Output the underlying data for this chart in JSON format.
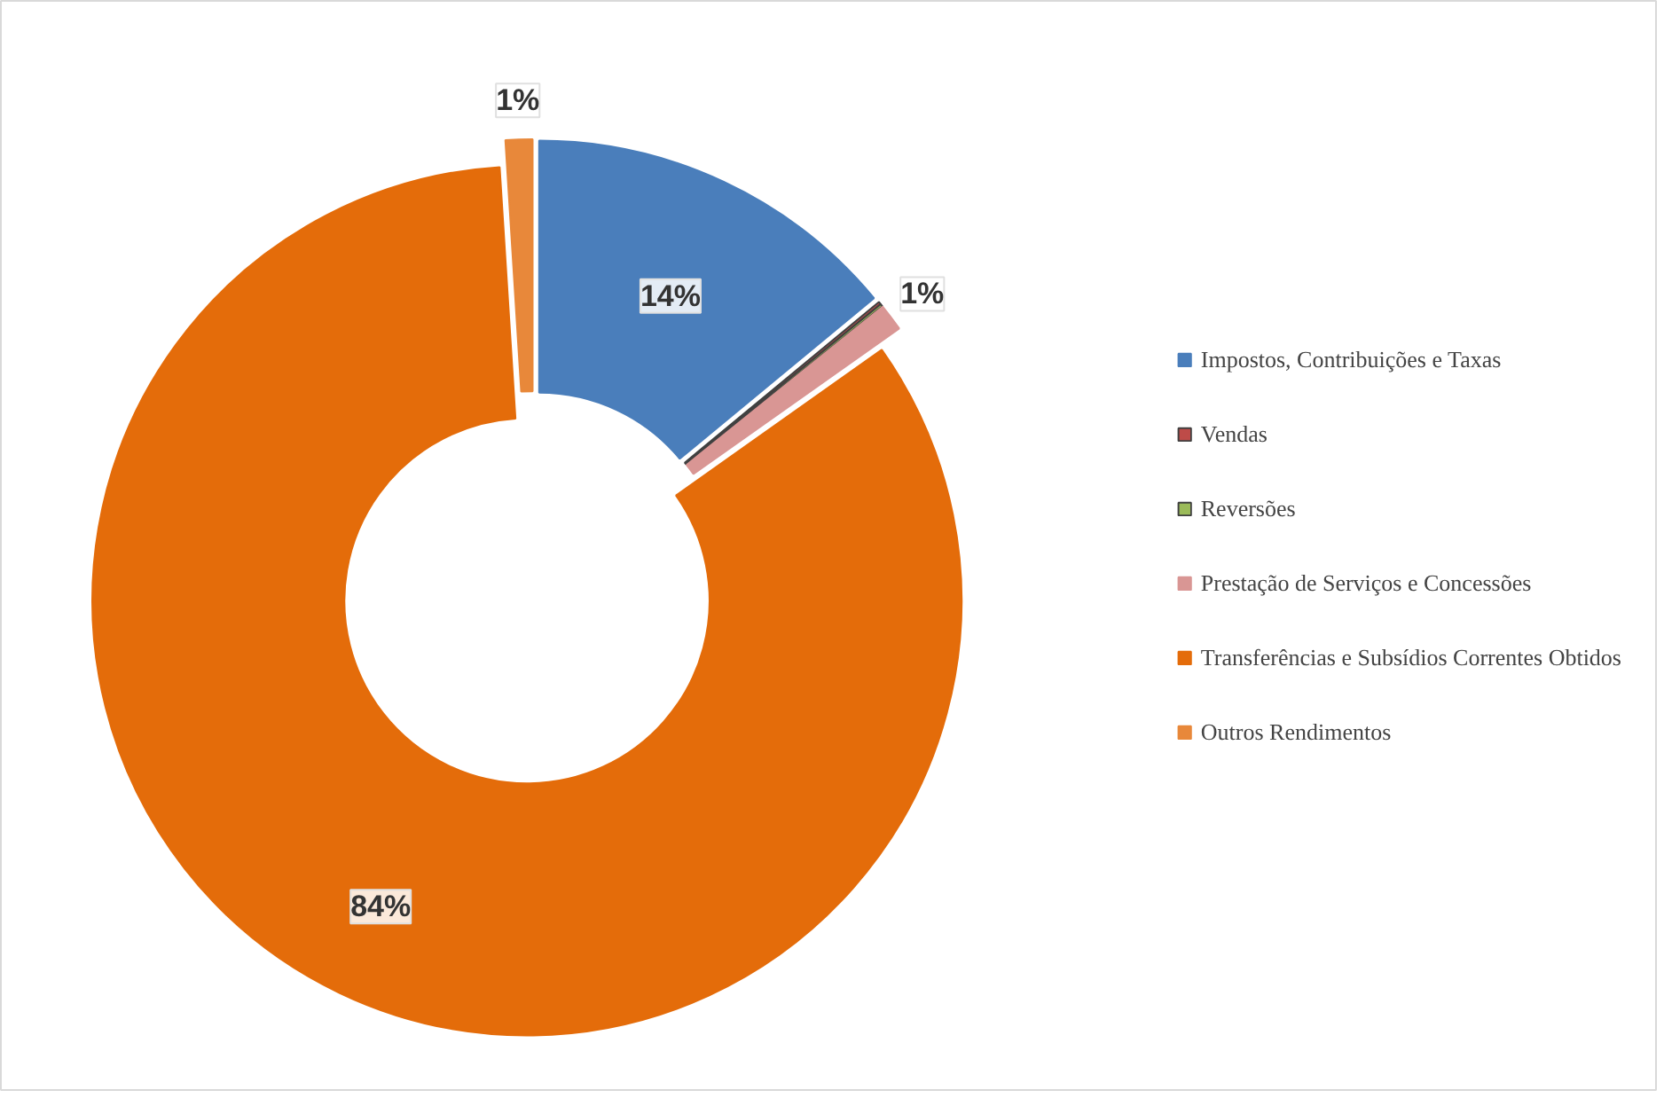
{
  "chart_data": {
    "type": "donut",
    "categories": [
      "Impostos, Contribuições e Taxas",
      "Vendas",
      "Reversões",
      "Prestação de Serviços e Concessões",
      "Transferências e Subsídios Correntes Obtidos",
      "Outros Rendimentos"
    ],
    "values": [
      14,
      0.1,
      0.1,
      1,
      83.8,
      1
    ],
    "colors": [
      "#4a7ebb",
      "#be4b48",
      "#9bbb59",
      "#d99694",
      "#e46c0a",
      "#e8883a"
    ],
    "value_labels": [
      "14%",
      null,
      null,
      "1%",
      "84%",
      "1%"
    ],
    "legend": "right"
  }
}
